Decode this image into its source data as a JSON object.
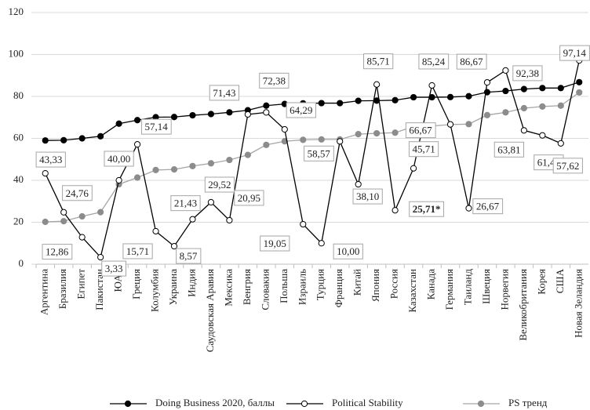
{
  "chart_data": {
    "type": "line",
    "categories": [
      "Аргентина",
      "Бразилия",
      "Египет",
      "Пакистан",
      "ЮАР",
      "Греция",
      "Колумбия",
      "Украина",
      "Индия",
      "Саудовская Аравия",
      "Мексика",
      "Венгрия",
      "Словакия",
      "Польша",
      "Израиль",
      "Турция",
      "Франция",
      "Китай",
      "Япония",
      "Россия",
      "Казахстан",
      "Канада",
      "Германия",
      "Таиланд",
      "Швеция",
      "Норвегия",
      "Великобритания",
      "Корея",
      "США",
      "Новая Зеландия"
    ],
    "series": [
      {
        "name": "Doing Business 2020, баллы",
        "color": "#000000",
        "values": [
          59,
          59.1,
          60,
          61,
          67,
          68.7,
          70.1,
          70.2,
          71,
          71.6,
          72.4,
          73.4,
          75.6,
          76.4,
          76.7,
          76.8,
          76.8,
          77.9,
          78,
          78.2,
          79.6,
          79.6,
          79.7,
          80.1,
          82,
          82.6,
          83.5,
          84,
          84,
          86.8
        ]
      },
      {
        "name": "Political Stability",
        "color": "#000000",
        "values": [
          43.33,
          24.76,
          12.86,
          3.33,
          40.0,
          57.14,
          15.71,
          8.57,
          21.43,
          29.52,
          20.95,
          71.43,
          72.38,
          64.29,
          19.05,
          10.0,
          58.57,
          38.1,
          85.71,
          25.71,
          45.71,
          85.24,
          66.67,
          26.67,
          86.67,
          92.38,
          63.81,
          61.43,
          57.62,
          97.14
        ],
        "value_labels": [
          "43,33",
          "24,76",
          "12,86",
          "3,33",
          "40,00",
          "57,14",
          "15,71",
          "8,57",
          "21,43",
          "29,52",
          "20,95",
          "71,43",
          "72,38",
          "64,29",
          "19,05",
          "10,00",
          "58,57",
          "38,10",
          "85,71",
          "25,71*",
          "45,71",
          "85,24",
          "66,67",
          "26,67",
          "86,67",
          "92,38",
          "63,81",
          "61,43",
          "57,62",
          "97,14"
        ]
      },
      {
        "name": "PS тренд",
        "color": "#8c8c8c",
        "values": [
          20.2,
          20.5,
          22.8,
          24.8,
          38.1,
          41.3,
          44.9,
          45.2,
          46.8,
          48.1,
          49.7,
          52.1,
          56.9,
          58.6,
          59.3,
          59.5,
          59.5,
          62,
          62.4,
          62.7,
          65.7,
          65.9,
          66.6,
          66.8,
          71.1,
          72.4,
          74.4,
          75.2,
          75.6,
          81.9
        ]
      }
    ],
    "ylim": [
      0,
      120
    ],
    "yticks": [
      0,
      20,
      40,
      60,
      80,
      100,
      120
    ],
    "grid": true
  }
}
